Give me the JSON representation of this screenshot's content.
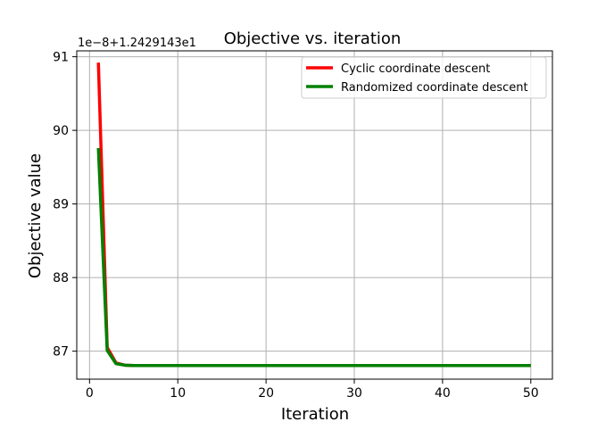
{
  "chart_data": {
    "type": "line",
    "title": "Objective vs. iteration",
    "xlabel": "Iteration",
    "ylabel": "Objective value",
    "offset_label": "1e−8+1.2429143e1",
    "xlim": [
      -1.45,
      52.45
    ],
    "ylim": [
      86.62,
      91.08
    ],
    "xticks": [
      0,
      10,
      20,
      30,
      40,
      50
    ],
    "yticks": [
      87,
      88,
      89,
      90,
      91
    ],
    "xtick_labels": [
      "0",
      "10",
      "20",
      "30",
      "40",
      "50"
    ],
    "ytick_labels": [
      "87",
      "88",
      "89",
      "90",
      "91"
    ],
    "grid": true,
    "legend_position": "upper right",
    "x": [
      1,
      2,
      3,
      4,
      5,
      6,
      7,
      8,
      9,
      10,
      11,
      12,
      13,
      14,
      15,
      16,
      17,
      18,
      19,
      20,
      21,
      22,
      23,
      24,
      25,
      26,
      27,
      28,
      29,
      30,
      31,
      32,
      33,
      34,
      35,
      36,
      37,
      38,
      39,
      40,
      41,
      42,
      43,
      44,
      45,
      46,
      47,
      48,
      49,
      50
    ],
    "series": [
      {
        "name": "Cyclic coordinate descent",
        "color": "#ff0000",
        "values": [
          90.92,
          87.05,
          86.84,
          86.81,
          86.805,
          86.805,
          86.805,
          86.805,
          86.805,
          86.805,
          86.805,
          86.805,
          86.805,
          86.805,
          86.805,
          86.805,
          86.805,
          86.805,
          86.805,
          86.805,
          86.805,
          86.805,
          86.805,
          86.805,
          86.805,
          86.805,
          86.805,
          86.805,
          86.805,
          86.805,
          86.805,
          86.805,
          86.805,
          86.805,
          86.805,
          86.805,
          86.805,
          86.805,
          86.805,
          86.805,
          86.805,
          86.805,
          86.805,
          86.805,
          86.805,
          86.805,
          86.805,
          86.805,
          86.805,
          86.805
        ]
      },
      {
        "name": "Randomized coordinate descent",
        "color": "#008000",
        "values": [
          89.76,
          87.01,
          86.83,
          86.81,
          86.805,
          86.805,
          86.805,
          86.805,
          86.805,
          86.805,
          86.805,
          86.805,
          86.805,
          86.805,
          86.805,
          86.805,
          86.805,
          86.805,
          86.805,
          86.805,
          86.805,
          86.805,
          86.805,
          86.805,
          86.805,
          86.805,
          86.805,
          86.805,
          86.805,
          86.805,
          86.805,
          86.805,
          86.805,
          86.805,
          86.805,
          86.805,
          86.805,
          86.805,
          86.805,
          86.805,
          86.805,
          86.805,
          86.805,
          86.805,
          86.805,
          86.805,
          86.805,
          86.805,
          86.805,
          86.805
        ]
      }
    ]
  }
}
